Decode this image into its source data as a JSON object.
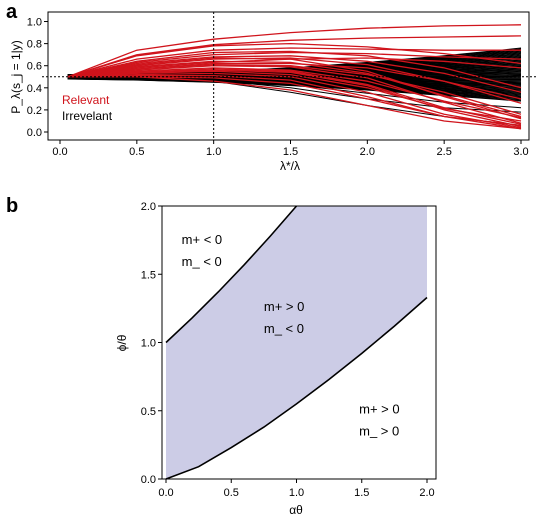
{
  "chart_data": [
    {
      "panel": "a",
      "type": "line",
      "xlabel": "λ*/λ",
      "ylabel": "P_λ(s_j = 1|y)",
      "xlim": [
        0,
        3.0
      ],
      "ylim": [
        0,
        1.05
      ],
      "x_ticks": [
        "0.0",
        "0.5",
        "1.0",
        "1.5",
        "2.0",
        "2.5",
        "3.0"
      ],
      "y_ticks": [
        "0.0",
        "0.2",
        "0.4",
        "0.6",
        "0.8",
        "1.0"
      ],
      "x_tick_values": [
        0,
        0.5,
        1.0,
        1.5,
        2.0,
        2.5,
        3.0
      ],
      "y_tick_values": [
        0,
        0.2,
        0.4,
        0.6,
        0.8,
        1.0
      ],
      "reference_lines": [
        {
          "orientation": "vertical",
          "value": 1.0,
          "style": "dotted"
        },
        {
          "orientation": "horizontal",
          "value": 0.5,
          "style": "dotted"
        }
      ],
      "legend": {
        "position": "left",
        "entries": [
          {
            "label": "Relevant",
            "color": "#d0141c"
          },
          {
            "label": "Irrevelant",
            "color": "#000000"
          }
        ]
      },
      "series_groups": [
        {
          "group": "Relevant",
          "color": "#d0141c",
          "count": 22
        },
        {
          "group": "Irrevelant",
          "color": "#000000",
          "count": 260
        }
      ],
      "relevant_series": [
        {
          "x": [
            0.05,
            0.5,
            1.0,
            1.5,
            2.0,
            2.5,
            3.0
          ],
          "y": [
            0.5,
            0.74,
            0.84,
            0.9,
            0.94,
            0.96,
            0.97
          ]
        },
        {
          "x": [
            0.05,
            0.5,
            1.0,
            1.5,
            2.0,
            2.5,
            3.0
          ],
          "y": [
            0.5,
            0.7,
            0.79,
            0.83,
            0.85,
            0.86,
            0.87
          ]
        },
        {
          "x": [
            0.05,
            0.5,
            1.0,
            1.5,
            2.0,
            2.5,
            3.0
          ],
          "y": [
            0.5,
            0.69,
            0.78,
            0.8,
            0.77,
            0.71,
            0.62
          ]
        },
        {
          "x": [
            0.05,
            0.5,
            1.0,
            1.5,
            2.0,
            2.5,
            3.0
          ],
          "y": [
            0.5,
            0.66,
            0.74,
            0.76,
            0.75,
            0.74,
            0.74
          ]
        },
        {
          "x": [
            0.05,
            0.5,
            1.0,
            1.5,
            2.0,
            2.5,
            3.0
          ],
          "y": [
            0.5,
            0.64,
            0.72,
            0.73,
            0.69,
            0.58,
            0.4
          ]
        },
        {
          "x": [
            0.05,
            0.5,
            1.0,
            1.5,
            2.0,
            2.5,
            3.0
          ],
          "y": [
            0.5,
            0.63,
            0.7,
            0.72,
            0.71,
            0.68,
            0.66
          ]
        },
        {
          "x": [
            0.05,
            0.5,
            1.0,
            1.5,
            2.0,
            2.5,
            3.0
          ],
          "y": [
            0.5,
            0.62,
            0.68,
            0.69,
            0.64,
            0.53,
            0.36
          ]
        },
        {
          "x": [
            0.05,
            0.5,
            1.0,
            1.5,
            2.0,
            2.5,
            3.0
          ],
          "y": [
            0.5,
            0.61,
            0.67,
            0.66,
            0.55,
            0.32,
            0.12
          ]
        },
        {
          "x": [
            0.05,
            0.5,
            1.0,
            1.5,
            2.0,
            2.5,
            3.0
          ],
          "y": [
            0.5,
            0.6,
            0.66,
            0.67,
            0.61,
            0.46,
            0.26
          ]
        },
        {
          "x": [
            0.05,
            0.5,
            1.0,
            1.5,
            2.0,
            2.5,
            3.0
          ],
          "y": [
            0.5,
            0.59,
            0.64,
            0.63,
            0.53,
            0.33,
            0.14
          ]
        },
        {
          "x": [
            0.05,
            0.5,
            1.0,
            1.5,
            2.0,
            2.5,
            3.0
          ],
          "y": [
            0.5,
            0.58,
            0.63,
            0.66,
            0.67,
            0.64,
            0.58
          ]
        },
        {
          "x": [
            0.05,
            0.5,
            1.0,
            1.5,
            2.0,
            2.5,
            3.0
          ],
          "y": [
            0.5,
            0.57,
            0.62,
            0.62,
            0.58,
            0.46,
            0.3
          ]
        },
        {
          "x": [
            0.05,
            0.5,
            1.0,
            1.5,
            2.0,
            2.5,
            3.0
          ],
          "y": [
            0.5,
            0.57,
            0.61,
            0.6,
            0.52,
            0.36,
            0.16
          ]
        },
        {
          "x": [
            0.05,
            0.5,
            1.0,
            1.5,
            2.0,
            2.5,
            3.0
          ],
          "y": [
            0.5,
            0.56,
            0.6,
            0.59,
            0.49,
            0.27,
            0.08
          ]
        },
        {
          "x": [
            0.05,
            0.5,
            1.0,
            1.5,
            2.0,
            2.5,
            3.0
          ],
          "y": [
            0.5,
            0.55,
            0.58,
            0.56,
            0.46,
            0.28,
            0.13
          ]
        },
        {
          "x": [
            0.05,
            0.5,
            1.0,
            1.5,
            2.0,
            2.5,
            3.0
          ],
          "y": [
            0.5,
            0.54,
            0.57,
            0.55,
            0.43,
            0.22,
            0.07
          ]
        },
        {
          "x": [
            0.05,
            0.5,
            1.0,
            1.5,
            2.0,
            2.5,
            3.0
          ],
          "y": [
            0.5,
            0.54,
            0.56,
            0.54,
            0.42,
            0.2,
            0.05
          ]
        },
        {
          "x": [
            0.05,
            0.5,
            1.0,
            1.5,
            2.0,
            2.5,
            3.0
          ],
          "y": [
            0.5,
            0.53,
            0.55,
            0.52,
            0.4,
            0.21,
            0.1
          ]
        },
        {
          "x": [
            0.05,
            0.5,
            1.0,
            1.5,
            2.0,
            2.5,
            3.0
          ],
          "y": [
            0.5,
            0.52,
            0.53,
            0.5,
            0.36,
            0.16,
            0.04
          ]
        },
        {
          "x": [
            0.05,
            0.5,
            1.0,
            1.5,
            2.0,
            2.5,
            3.0
          ],
          "y": [
            0.5,
            0.51,
            0.51,
            0.47,
            0.32,
            0.14,
            0.03
          ]
        },
        {
          "x": [
            0.05,
            0.5,
            1.0,
            1.5,
            2.0,
            2.5,
            3.0
          ],
          "y": [
            0.5,
            0.5,
            0.49,
            0.44,
            0.3,
            0.14,
            0.06
          ]
        },
        {
          "x": [
            0.05,
            0.5,
            1.0,
            1.5,
            2.0,
            2.5,
            3.0
          ],
          "y": [
            0.5,
            0.5,
            0.46,
            0.38,
            0.24,
            0.1,
            0.03
          ]
        }
      ],
      "irrelevant_envelope": {
        "x": [
          0.05,
          0.5,
          1.0,
          1.5,
          2.0,
          2.5,
          3.0
        ],
        "upper": [
          0.52,
          0.535,
          0.55,
          0.58,
          0.63,
          0.69,
          0.76
        ],
        "lower": [
          0.48,
          0.47,
          0.45,
          0.42,
          0.38,
          0.33,
          0.28
        ]
      }
    },
    {
      "panel": "b",
      "type": "area",
      "xlabel": "αθ",
      "ylabel": "ϕ/θ",
      "xlim": [
        0,
        2.0
      ],
      "ylim": [
        0,
        2.0
      ],
      "x_ticks": [
        "0.0",
        "0.5",
        "1.0",
        "1.5",
        "2.0"
      ],
      "y_ticks": [
        "0.0",
        "0.5",
        "1.0",
        "1.5",
        "2.0"
      ],
      "x_tick_values": [
        0,
        0.5,
        1.0,
        1.5,
        2.0
      ],
      "y_tick_values": [
        0,
        0.5,
        1.0,
        1.5,
        2.0
      ],
      "shaded_color": "#cccce6",
      "upper_boundary": {
        "x": [
          0.0,
          0.2,
          0.4,
          0.6,
          0.8,
          1.0
        ],
        "y": [
          1.0,
          1.18,
          1.37,
          1.57,
          1.78,
          2.0
        ]
      },
      "lower_boundary": {
        "x": [
          0.0,
          0.25,
          0.5,
          0.75,
          1.0,
          1.25,
          1.5,
          1.75,
          2.0
        ],
        "y": [
          0.0,
          0.09,
          0.23,
          0.38,
          0.55,
          0.73,
          0.92,
          1.12,
          1.33
        ]
      },
      "regions": [
        {
          "name": "m_plus_neg",
          "line1": "m+ < 0",
          "line2": "m_ < 0"
        },
        {
          "name": "m_plus_pos_minus_neg",
          "line1": "m+ > 0",
          "line2": "m_ < 0"
        },
        {
          "name": "m_plus_pos_minus_pos",
          "line1": "m+ > 0",
          "line2": "m_ > 0"
        }
      ]
    }
  ],
  "panel_labels": {
    "a": "a",
    "b": "b"
  },
  "colors": {
    "relevant": "#d0141c",
    "irrelevant": "#000000",
    "shade": "#cccce6",
    "axis": "#000000"
  }
}
